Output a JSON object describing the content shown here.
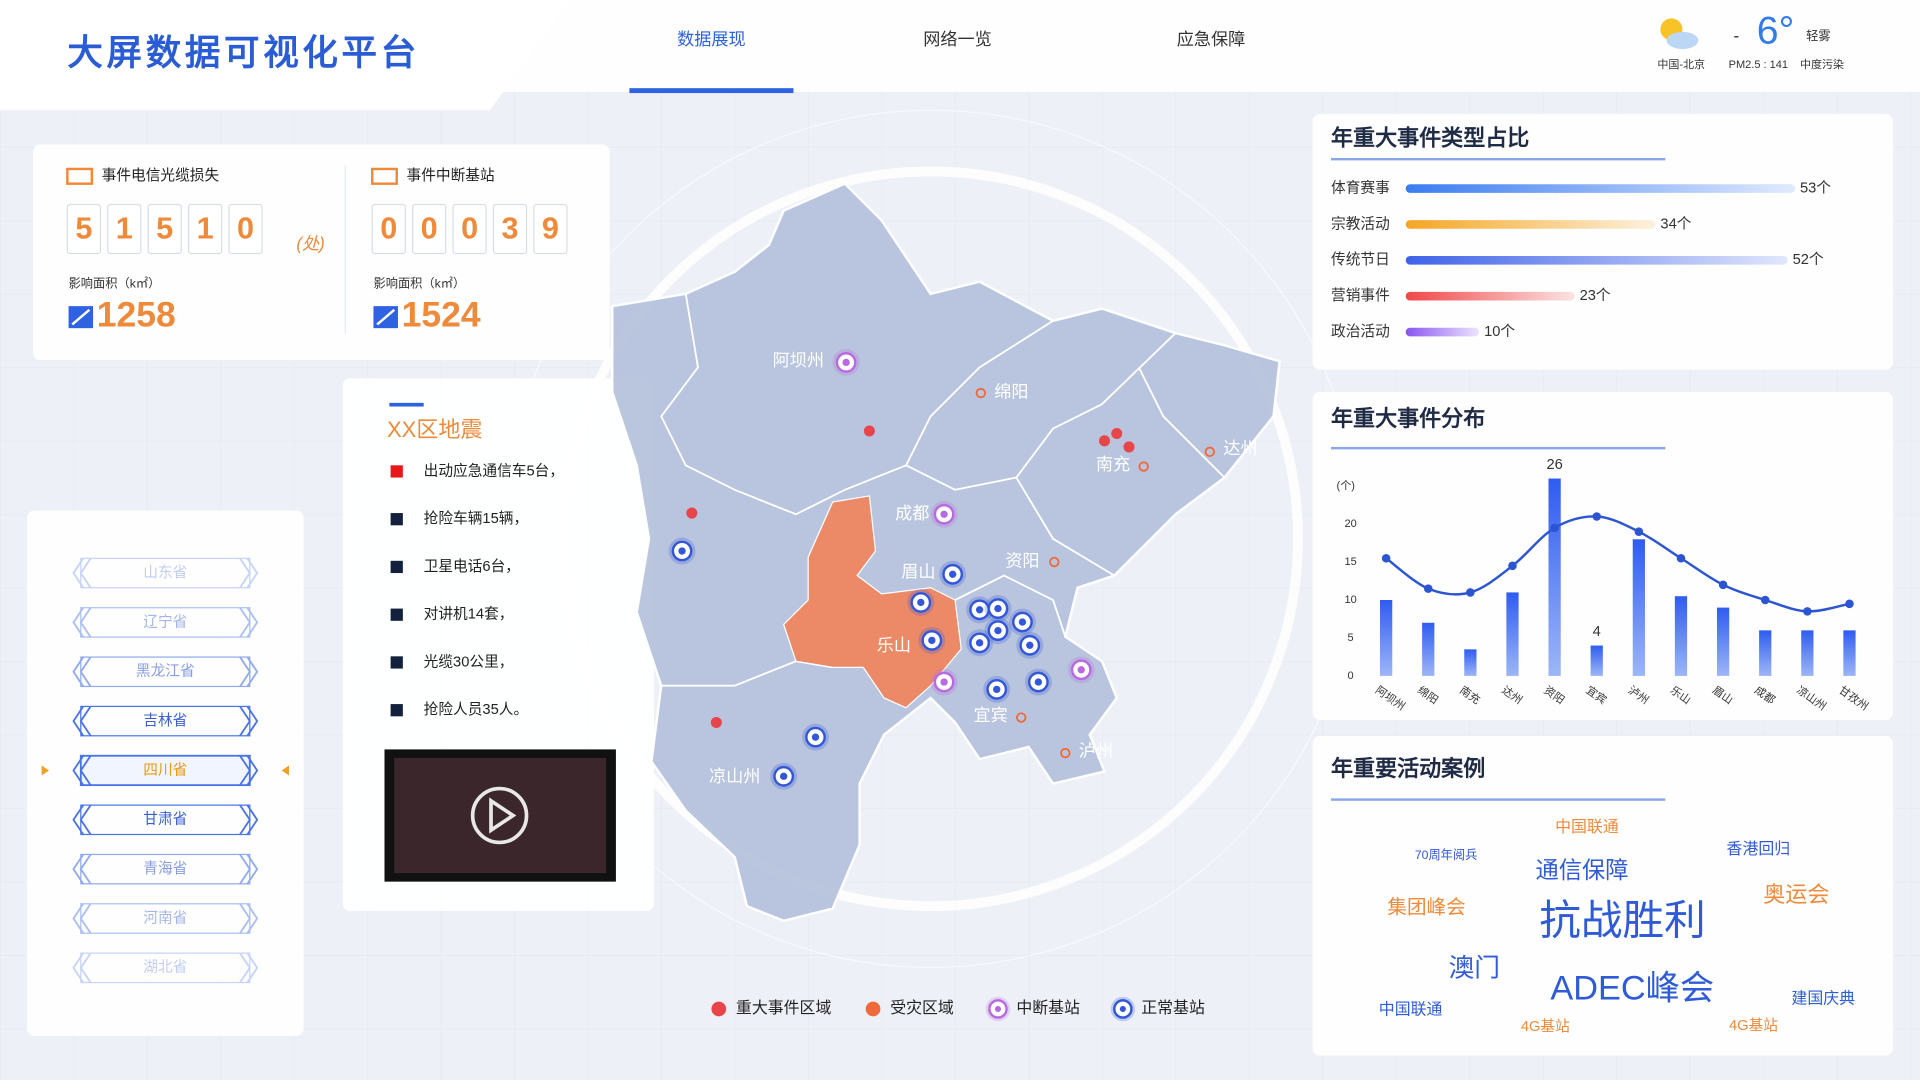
{
  "header": {
    "title": "大屏数据可视化平台",
    "nav": [
      "数据展现",
      "网络一览",
      "应急保障"
    ],
    "weather": {
      "sign": "-",
      "temp": "6°",
      "condition": "轻雾",
      "city": "中国-北京",
      "pm": "PM2.5 : 141",
      "pollution": "中度污染"
    }
  },
  "stats": [
    {
      "label": "事件电信光缆损失",
      "digits": [
        "5",
        "1",
        "5",
        "1",
        "0"
      ],
      "unit": "(处)",
      "area_label": "影响面积（k㎡）",
      "area": 1258
    },
    {
      "label": "事件中断基站",
      "digits": [
        "0",
        "0",
        "0",
        "3",
        "9"
      ],
      "area_label": "影响面积（k㎡）",
      "area": 1524
    }
  ],
  "provinces": {
    "items": [
      "山东省",
      "辽宁省",
      "黑龙江省",
      "吉林省",
      "四川省",
      "甘肃省",
      "青海省",
      "河南省",
      "湖北省"
    ],
    "selected": 4
  },
  "event": {
    "title": "XX区地震",
    "items": [
      "出动应急通信车5台，",
      "抢险车辆15辆，",
      "卫星电话6台，",
      "对讲机14套，",
      "光缆30公里，",
      "抢险人员35人。"
    ]
  },
  "map": {
    "cities": [
      "阿坝州",
      "绵阳",
      "南充",
      "达州",
      "成都",
      "资阳",
      "眉山",
      "乐山",
      "宜宾",
      "泸州",
      "凉山州"
    ],
    "legend": [
      "重大事件区域",
      "受灾区域",
      "中断基站",
      "正常基站"
    ]
  },
  "chart_data": [
    {
      "type": "hbar",
      "title": "年重大事件类型占比",
      "categories": [
        "体育赛事",
        "宗教活动",
        "传统节日",
        "营销事件",
        "政治活动"
      ],
      "values": [
        53,
        34,
        52,
        23,
        10
      ],
      "value_labels": [
        "53个",
        "34个",
        "52个",
        "23个",
        "10个"
      ],
      "colors": [
        "#3b7cf0",
        "#f5a623",
        "#3f62e8",
        "#f04848",
        "#8a55f0"
      ],
      "xlim": [
        0,
        60
      ]
    },
    {
      "type": "bar_line",
      "title": "年重大事件分布",
      "y_label": "(个)",
      "categories": [
        "阿坝州",
        "绵阳",
        "南充",
        "达州",
        "资阳",
        "宜宾",
        "泸州",
        "乐山",
        "眉山",
        "成都",
        "凉山州",
        "甘孜州"
      ],
      "series": [
        {
          "type": "bar",
          "color": "#3562ee",
          "values": [
            10,
            7,
            3.5,
            11,
            26,
            4,
            18,
            10.5,
            9,
            6,
            6,
            6
          ],
          "value_labels": [
            null,
            null,
            null,
            null,
            "26",
            "4",
            null,
            null,
            null,
            null,
            null,
            null
          ]
        },
        {
          "type": "line",
          "color": "#2c55d2",
          "values": [
            15.5,
            11.5,
            11,
            14.5,
            19.5,
            21,
            19,
            15.5,
            12,
            10,
            8.5,
            9.5
          ]
        }
      ],
      "ylim": [
        0,
        27
      ],
      "yticks": [
        0,
        5,
        10,
        15,
        20
      ]
    }
  ],
  "activities": {
    "title": "年重要活动案例",
    "words": [
      "中国联通",
      "70周年阅兵",
      "香港回归",
      "通信保障",
      "集团峰会",
      "抗战胜利",
      "奥运会",
      "澳门",
      "ADEC峰会",
      "中国联通",
      "4G基站",
      "建国庆典",
      "4G基站"
    ]
  }
}
